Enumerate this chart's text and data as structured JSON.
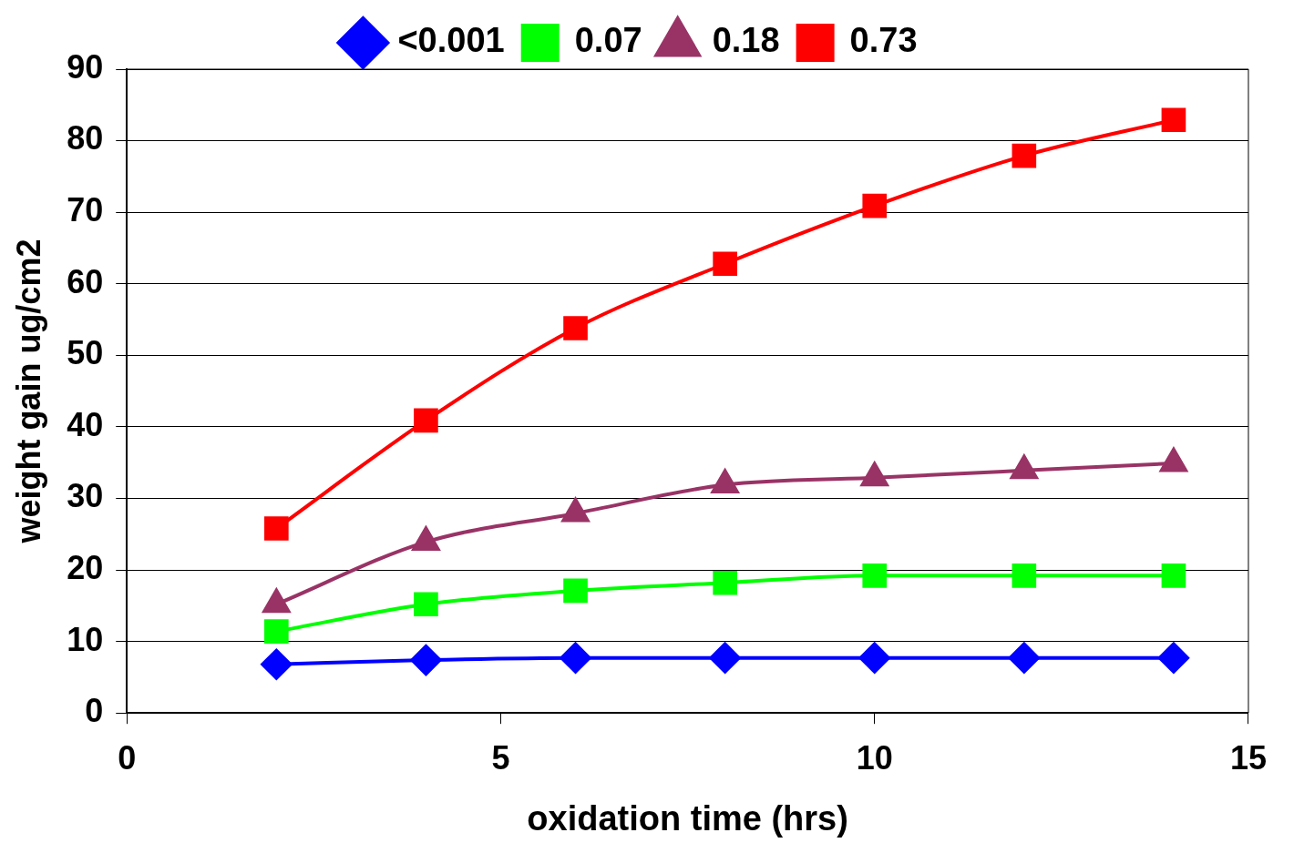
{
  "chart_data": {
    "type": "line",
    "xlabel": "oxidation time (hrs)",
    "ylabel": "weight gain ug/cm2",
    "x": [
      2,
      4,
      6,
      8,
      10,
      12,
      14
    ],
    "series": [
      {
        "name": "<0.001",
        "color": "#0000ff",
        "marker": "diamond",
        "values": [
          6.8,
          7.4,
          7.7,
          7.7,
          7.7,
          7.7,
          7.7
        ]
      },
      {
        "name": "0.07",
        "color": "#00ff00",
        "marker": "square",
        "values": [
          11.4,
          15.2,
          17.1,
          18.2,
          19.2,
          19.2,
          19.2
        ]
      },
      {
        "name": "0.18",
        "color": "#993366",
        "marker": "triangle",
        "values": [
          15.2,
          23.9,
          27.9,
          31.9,
          32.9,
          33.9,
          34.9
        ]
      },
      {
        "name": "0.73",
        "color": "#ff0000",
        "marker": "square",
        "values": [
          25.8,
          40.9,
          53.8,
          62.8,
          70.9,
          77.9,
          82.9
        ]
      }
    ],
    "xlim": [
      0,
      15
    ],
    "xticks": [
      0,
      5,
      10,
      15
    ],
    "ylim": [
      0,
      90
    ],
    "yticks": [
      0,
      10,
      20,
      30,
      40,
      50,
      60,
      70,
      80,
      90
    ],
    "grid": "y",
    "legend": "top",
    "line_style": "solid"
  }
}
